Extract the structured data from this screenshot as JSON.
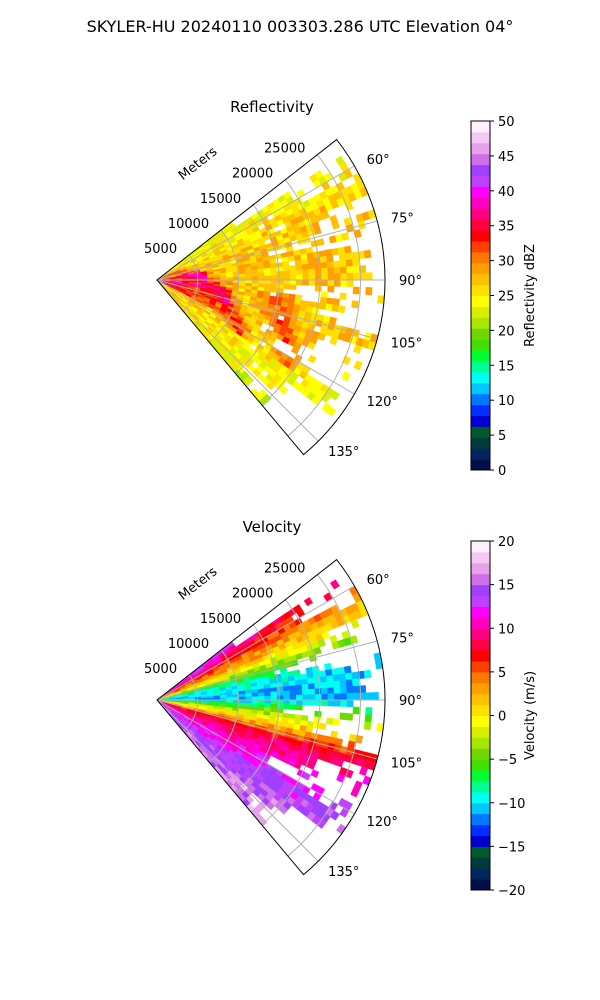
{
  "suptitle": "SKYLER-HU  20240110  003303.286 UTC Elevation 04°",
  "colors": {
    "reflectivity_scale": [
      "#00104a",
      "#00285e",
      "#003c3c",
      "#005a2a",
      "#0000d0",
      "#0030ff",
      "#0078ff",
      "#00c8ff",
      "#00fff0",
      "#00ff90",
      "#00ff30",
      "#40e000",
      "#70d800",
      "#a8e800",
      "#d8f000",
      "#ffff00",
      "#ffe000",
      "#ffc000",
      "#ffa000",
      "#ff7800",
      "#ff4000",
      "#ff0000",
      "#ff0040",
      "#ff0080",
      "#ff00c0",
      "#ff00ff",
      "#c040ff",
      "#a040ff",
      "#d070e8",
      "#e8a0e8",
      "#f4c8f4",
      "#fff0ff"
    ],
    "velocity_scale": [
      "#00104a",
      "#00285e",
      "#003c3c",
      "#005a2a",
      "#0000d0",
      "#0030ff",
      "#0078ff",
      "#00c8ff",
      "#00fff0",
      "#00ff90",
      "#00ff30",
      "#40e000",
      "#70d800",
      "#a8e800",
      "#d8f000",
      "#ffff00",
      "#ffe000",
      "#ffc000",
      "#ffa000",
      "#ff7800",
      "#ff4000",
      "#ff0000",
      "#ff0040",
      "#ff0080",
      "#ff00c0",
      "#ff00ff",
      "#c040ff",
      "#a040ff",
      "#d070e8",
      "#e8a0e8",
      "#f4c8f4",
      "#fff0ff"
    ]
  },
  "chart_data": [
    {
      "type": "heatmap",
      "title": "Reflectivity",
      "radial_label": "Meters",
      "projection": "polar sector",
      "azimuth_range_deg": [
        52,
        140
      ],
      "range_max_m": 28000,
      "range_ticks": [
        "5000",
        "10000",
        "15000",
        "20000",
        "25000"
      ],
      "range_tick_values": [
        5000,
        10000,
        15000,
        20000,
        25000
      ],
      "azimuth_ticks": [
        "60°",
        "75°",
        "90°",
        "105°",
        "120°",
        "135°"
      ],
      "azimuth_tick_values": [
        60,
        75,
        90,
        105,
        120,
        135
      ],
      "grid": true,
      "colorbar": {
        "label": "Reflectivity dBZ",
        "min": 0,
        "max": 50,
        "ticks": [
          "0",
          "5",
          "10",
          "15",
          "20",
          "25",
          "30",
          "35",
          "40",
          "45",
          "50"
        ],
        "tick_values": [
          0,
          5,
          10,
          15,
          20,
          25,
          30,
          35,
          40,
          45,
          50
        ]
      },
      "field_summary": {
        "typical_dbz": 27,
        "max_dbz_near_radar": 40,
        "banded_maxima_dbz": 35
      }
    },
    {
      "type": "heatmap",
      "title": "Velocity",
      "radial_label": "Meters",
      "projection": "polar sector",
      "azimuth_range_deg": [
        52,
        140
      ],
      "range_max_m": 28000,
      "range_ticks": [
        "5000",
        "10000",
        "15000",
        "20000",
        "25000"
      ],
      "range_tick_values": [
        5000,
        10000,
        15000,
        20000,
        25000
      ],
      "azimuth_ticks": [
        "60°",
        "75°",
        "90°",
        "105°",
        "120°",
        "135°"
      ],
      "azimuth_tick_values": [
        60,
        75,
        90,
        105,
        120,
        135
      ],
      "grid": true,
      "colorbar": {
        "label": "Velocity (m/s)",
        "min": -20,
        "max": 20,
        "ticks": [
          "20",
          "15",
          "10",
          "5",
          "0",
          "−5",
          "−10",
          "−15",
          "−20"
        ],
        "tick_values": [
          20,
          15,
          10,
          5,
          0,
          -5,
          -10,
          -15,
          -20
        ]
      },
      "field_summary": {
        "northern_edge_ms": 15,
        "az_90_ms": -10,
        "az_105_ms": 0,
        "az_130_ms": 12
      }
    }
  ]
}
